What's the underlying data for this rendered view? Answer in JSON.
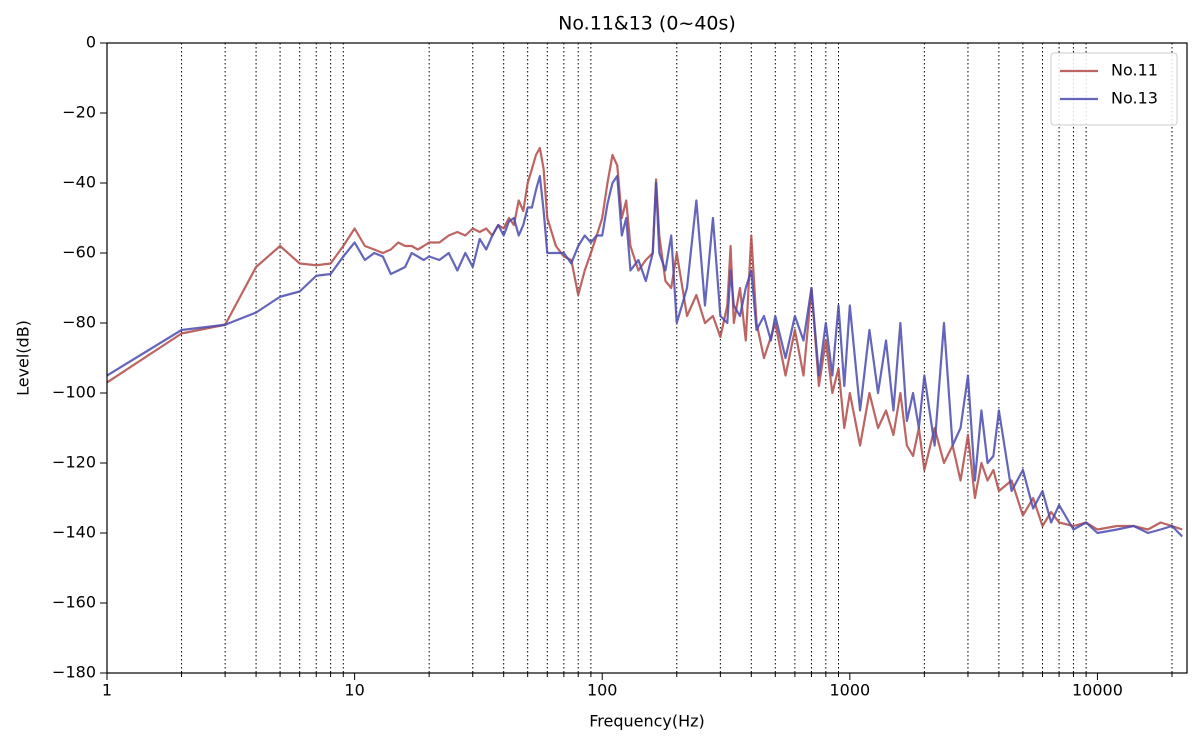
{
  "chart_data": {
    "type": "line",
    "title": "No.11&13 (0~40s)",
    "x_label": "Frequency(Hz)",
    "y_label": "Level(dB)",
    "x_scale": "log",
    "xlim": [
      1,
      23000
    ],
    "ylim": [
      -180,
      0
    ],
    "xticks": [
      1,
      10,
      100,
      1000,
      10000
    ],
    "xgrid": [
      2,
      3,
      4,
      5,
      6,
      7,
      8,
      9,
      20,
      30,
      40,
      50,
      60,
      70,
      80,
      90,
      200,
      300,
      400,
      500,
      600,
      700,
      800,
      900,
      2000,
      3000,
      4000,
      5000,
      6000,
      7000,
      8000,
      9000,
      20000
    ],
    "yticks": [
      {
        "value": -180,
        "label": "−180"
      },
      {
        "value": -160,
        "label": "−160"
      },
      {
        "value": -140,
        "label": "−140"
      },
      {
        "value": -120,
        "label": "−120"
      },
      {
        "value": -100,
        "label": "−100"
      },
      {
        "value": -80,
        "label": "−80"
      },
      {
        "value": -60,
        "label": "−60"
      },
      {
        "value": -40,
        "label": "−40"
      },
      {
        "value": -20,
        "label": "−20"
      },
      0
    ],
    "legend": "upper right",
    "x": [
      1,
      2,
      3,
      4,
      5,
      6,
      7,
      8,
      9,
      10,
      11,
      12,
      13,
      14,
      15,
      16,
      17,
      18,
      19,
      20,
      22,
      24,
      26,
      28,
      30,
      32,
      34,
      36,
      38,
      40,
      42,
      44,
      46,
      48,
      50,
      52,
      54,
      56,
      58,
      60,
      65,
      70,
      75,
      80,
      85,
      90,
      95,
      100,
      105,
      110,
      115,
      120,
      125,
      130,
      140,
      150,
      160,
      165,
      170,
      180,
      190,
      200,
      220,
      240,
      260,
      280,
      300,
      320,
      330,
      340,
      360,
      380,
      400,
      420,
      450,
      480,
      500,
      550,
      600,
      650,
      700,
      750,
      800,
      850,
      900,
      950,
      1000,
      1100,
      1200,
      1300,
      1400,
      1500,
      1600,
      1700,
      1800,
      1900,
      2000,
      2200,
      2400,
      2600,
      2800,
      3000,
      3200,
      3400,
      3600,
      3800,
      4000,
      4500,
      5000,
      5500,
      6000,
      6500,
      7000,
      8000,
      9000,
      10000,
      12000,
      14000,
      16000,
      18000,
      20000,
      22000
    ],
    "series": [
      {
        "name": "No.11",
        "color": "#b04a47",
        "values": [
          -97,
          -83,
          -80.5,
          -64,
          -58,
          -63,
          -63.5,
          -63,
          -58,
          -53,
          -58,
          -59,
          -60,
          -59,
          -57,
          -58,
          -58,
          -59,
          -58,
          -57,
          -57,
          -55,
          -54,
          -55,
          -53,
          -54,
          -53,
          -55,
          -52,
          -53,
          -50,
          -52,
          -45,
          -48,
          -40,
          -36,
          -32,
          -30,
          -36,
          -50,
          -58,
          -61,
          -62,
          -72,
          -65,
          -60,
          -55,
          -50,
          -40,
          -32,
          -35,
          -50,
          -45,
          -58,
          -65,
          -62,
          -60,
          -39,
          -55,
          -68,
          -70,
          -60,
          -78,
          -72,
          -80,
          -78,
          -84,
          -75,
          -58,
          -80,
          -70,
          -85,
          -55,
          -80,
          -90,
          -84,
          -80,
          -95,
          -82,
          -95,
          -70,
          -98,
          -85,
          -100,
          -93,
          -110,
          -100,
          -115,
          -100,
          -110,
          -105,
          -112,
          -100,
          -115,
          -118,
          -110,
          -122,
          -110,
          -120,
          -115,
          -125,
          -112,
          -130,
          -120,
          -125,
          -122,
          -128,
          -125,
          -135,
          -130,
          -138,
          -134,
          -137,
          -138,
          -137,
          -139,
          -138,
          -138,
          -139,
          -137,
          -138,
          -139
        ]
      },
      {
        "name": "No.13",
        "color": "#4a4ab0",
        "values": [
          -95,
          -82,
          -80.5,
          -77,
          -72.5,
          -71,
          -66.5,
          -66,
          -61,
          -57,
          -62,
          -60,
          -61,
          -66,
          -65,
          -64,
          -60,
          -61,
          -62,
          -61,
          -62,
          -60,
          -65,
          -60,
          -64,
          -56,
          -59,
          -55,
          -52,
          -55,
          -51,
          -50,
          -55,
          -52,
          -47,
          -47,
          -42,
          -38,
          -48,
          -60,
          -60,
          -60,
          -63,
          -58,
          -55,
          -57,
          -55,
          -55,
          -46,
          -40,
          -38,
          -55,
          -50,
          -65,
          -62,
          -68,
          -60,
          -40,
          -60,
          -65,
          -55,
          -80,
          -70,
          -45,
          -75,
          -50,
          -78,
          -80,
          -65,
          -75,
          -78,
          -70,
          -65,
          -82,
          -78,
          -85,
          -78,
          -90,
          -78,
          -85,
          -70,
          -95,
          -80,
          -95,
          -75,
          -98,
          -75,
          -105,
          -82,
          -100,
          -85,
          -105,
          -80,
          -108,
          -100,
          -110,
          -95,
          -115,
          -80,
          -115,
          -110,
          -95,
          -125,
          -105,
          -120,
          -118,
          -105,
          -128,
          -122,
          -133,
          -128,
          -137,
          -132,
          -139,
          -137,
          -140,
          -139,
          -138,
          -140,
          -139,
          -138,
          -141
        ]
      }
    ]
  }
}
